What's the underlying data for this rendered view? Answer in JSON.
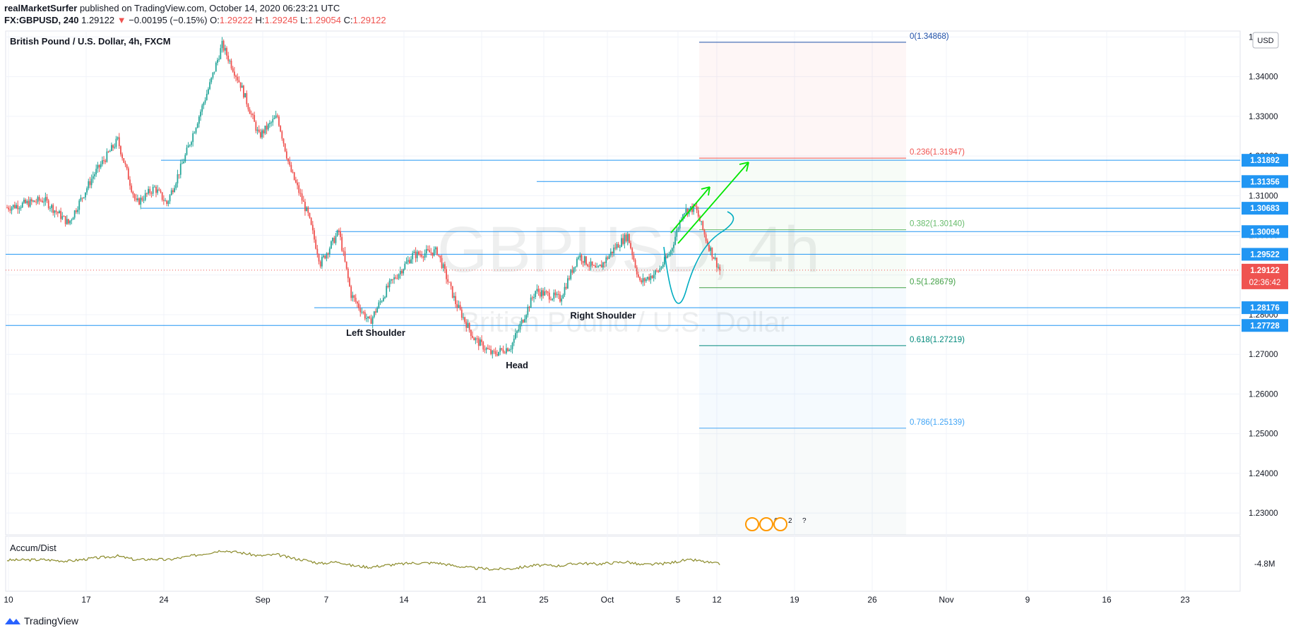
{
  "header": {
    "author": "realMarketSurfer",
    "published": " published on TradingView.com, October 14, 2020 06:23:21 UTC",
    "symbol": "FX:GBPUSD, 240",
    "price": "1.29122",
    "change_arrow": "▼",
    "change": "−0.00195 (−0.15%)",
    "o_label": "O:",
    "o": "1.29222",
    "h_label": "H:",
    "h": "1.29245",
    "l_label": "L:",
    "l": "1.29054",
    "c_label": "C:",
    "c": "1.29122"
  },
  "footer": {
    "brand": "TradingView",
    "icon": "tradingview-logo-icon"
  },
  "colors": {
    "up": "#26a69a",
    "down": "#ef5350",
    "hline": "#2196f3",
    "arrow": "#00e600",
    "ad": "#8b8b2a"
  },
  "chart_data": {
    "type": "candlestick",
    "title": "British Pound / U.S. Dollar, 4h, FXCM",
    "watermark_symbol": "GBPUSD, 4h",
    "watermark_name": "British Pound / U.S. Dollar",
    "currency": "USD",
    "ylim": [
      1.2245,
      1.3515
    ],
    "y_ticks": [
      "1.35000",
      "1.34000",
      "1.33000",
      "1.32000",
      "1.31000",
      "1.30000",
      "1.29000",
      "1.28000",
      "1.27000",
      "1.26000",
      "1.25000",
      "1.24000",
      "1.23000"
    ],
    "x_ticks": [
      "10",
      "17",
      "24",
      "Sep",
      "7",
      "14",
      "21",
      "25",
      "Oct",
      "5",
      "12",
      "19",
      "26",
      "Nov",
      "9",
      "16",
      "23"
    ],
    "price_path": [
      {
        "t": 0,
        "p": 1.307
      },
      {
        "t": 6,
        "p": 1.309
      },
      {
        "t": 10,
        "p": 1.303
      },
      {
        "t": 14,
        "p": 1.315
      },
      {
        "t": 18,
        "p": 1.324
      },
      {
        "t": 21,
        "p": 1.308
      },
      {
        "t": 24,
        "p": 1.312
      },
      {
        "t": 26,
        "p": 1.308
      },
      {
        "t": 29,
        "p": 1.32
      },
      {
        "t": 33,
        "p": 1.338
      },
      {
        "t": 35,
        "p": 1.348
      },
      {
        "t": 38,
        "p": 1.338
      },
      {
        "t": 41,
        "p": 1.325
      },
      {
        "t": 44,
        "p": 1.33
      },
      {
        "t": 46,
        "p": 1.317
      },
      {
        "t": 49,
        "p": 1.305
      },
      {
        "t": 51,
        "p": 1.293
      },
      {
        "t": 54,
        "p": 1.301
      },
      {
        "t": 56,
        "p": 1.285
      },
      {
        "t": 59,
        "p": 1.278
      },
      {
        "t": 62,
        "p": 1.287
      },
      {
        "t": 66,
        "p": 1.295
      },
      {
        "t": 70,
        "p": 1.296
      },
      {
        "t": 73,
        "p": 1.283
      },
      {
        "t": 76,
        "p": 1.274
      },
      {
        "t": 79,
        "p": 1.27
      },
      {
        "t": 82,
        "p": 1.272
      },
      {
        "t": 86,
        "p": 1.286
      },
      {
        "t": 90,
        "p": 1.284
      },
      {
        "t": 93,
        "p": 1.295
      },
      {
        "t": 96,
        "p": 1.291
      },
      {
        "t": 99,
        "p": 1.297
      },
      {
        "t": 101,
        "p": 1.3
      },
      {
        "t": 103,
        "p": 1.288
      },
      {
        "t": 106,
        "p": 1.291
      },
      {
        "t": 108,
        "p": 1.296
      },
      {
        "t": 110,
        "p": 1.306
      },
      {
        "t": 112,
        "p": 1.307
      },
      {
        "t": 114,
        "p": 1.298
      },
      {
        "t": 116,
        "p": 1.2912
      }
    ],
    "horizontal_levels": [
      {
        "label": "1.31892",
        "value": 1.31892
      },
      {
        "label": "1.31356",
        "value": 1.31356
      },
      {
        "label": "1.30683",
        "value": 1.30683
      },
      {
        "label": "1.30094",
        "value": 1.30094
      },
      {
        "label": "1.29522",
        "value": 1.29522
      },
      {
        "label": "1.28176",
        "value": 1.28176
      },
      {
        "label": "1.27728",
        "value": 1.27728
      }
    ],
    "current_price": {
      "label": "1.29122",
      "value": 1.29122,
      "countdown": "02:36:42"
    },
    "fibonacci": [
      {
        "label": "0(1.34868)",
        "value": 1.34868,
        "color": "#1e4fa8"
      },
      {
        "label": "0.236(1.31947)",
        "value": 1.31947,
        "color": "#ef5350"
      },
      {
        "label": "0.382(1.30140)",
        "value": 1.3014,
        "color": "#66bb6a"
      },
      {
        "label": "0.5(1.28679)",
        "value": 1.28679,
        "color": "#43a047"
      },
      {
        "label": "0.618(1.27219)",
        "value": 1.27219,
        "color": "#00897b"
      },
      {
        "label": "0.786(1.25139)",
        "value": 1.25139,
        "color": "#42a5f5"
      }
    ],
    "annotations": [
      {
        "text": "Left Shoulder",
        "t": 60,
        "p": 1.2747
      },
      {
        "text": "Head",
        "t": 83,
        "p": 1.2665
      },
      {
        "text": "Right Shoulder",
        "t": 97,
        "p": 1.279
      }
    ],
    "event_badges": [
      "6",
      "2",
      "?"
    ],
    "indicator": {
      "name": "Accum/Dist",
      "tick": "-4.8M"
    }
  }
}
